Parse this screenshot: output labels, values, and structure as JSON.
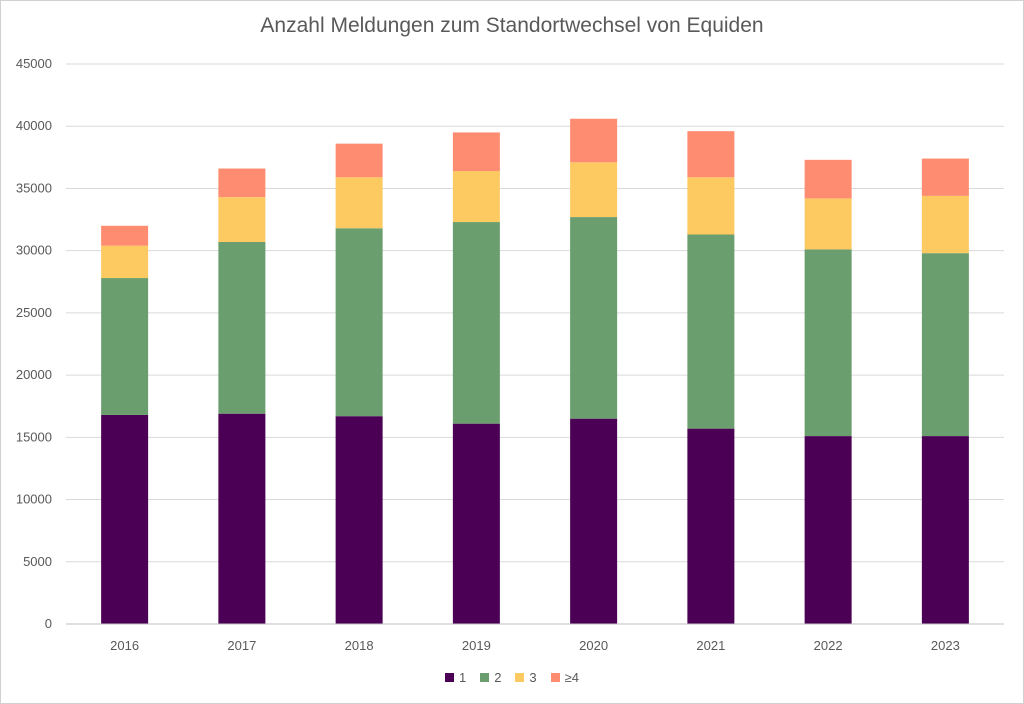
{
  "chart_data": {
    "type": "bar",
    "stacked": true,
    "title": "Anzahl Meldungen zum Standortwechsel von Equiden",
    "xlabel": "",
    "ylabel": "",
    "categories": [
      "2016",
      "2017",
      "2018",
      "2019",
      "2020",
      "2021",
      "2022",
      "2023"
    ],
    "ylim": [
      0,
      45000
    ],
    "yticks": [
      0,
      5000,
      10000,
      15000,
      20000,
      25000,
      30000,
      35000,
      40000,
      45000
    ],
    "grid": true,
    "legend_position": "bottom",
    "series": [
      {
        "name": "1",
        "color": "#4b0055",
        "values": [
          16800,
          16900,
          16700,
          16100,
          16500,
          15700,
          15100,
          15100
        ]
      },
      {
        "name": "2",
        "color": "#6a9e6e",
        "values": [
          11000,
          13800,
          15100,
          16200,
          16200,
          15600,
          15000,
          14700
        ]
      },
      {
        "name": "3",
        "color": "#fdc961",
        "values": [
          2600,
          3600,
          4100,
          4100,
          4400,
          4600,
          4100,
          4600
        ]
      },
      {
        "name": "≥4",
        "color": "#fd8c70",
        "values": [
          1600,
          2300,
          2700,
          3100,
          3500,
          3700,
          3100,
          3000
        ]
      }
    ]
  }
}
